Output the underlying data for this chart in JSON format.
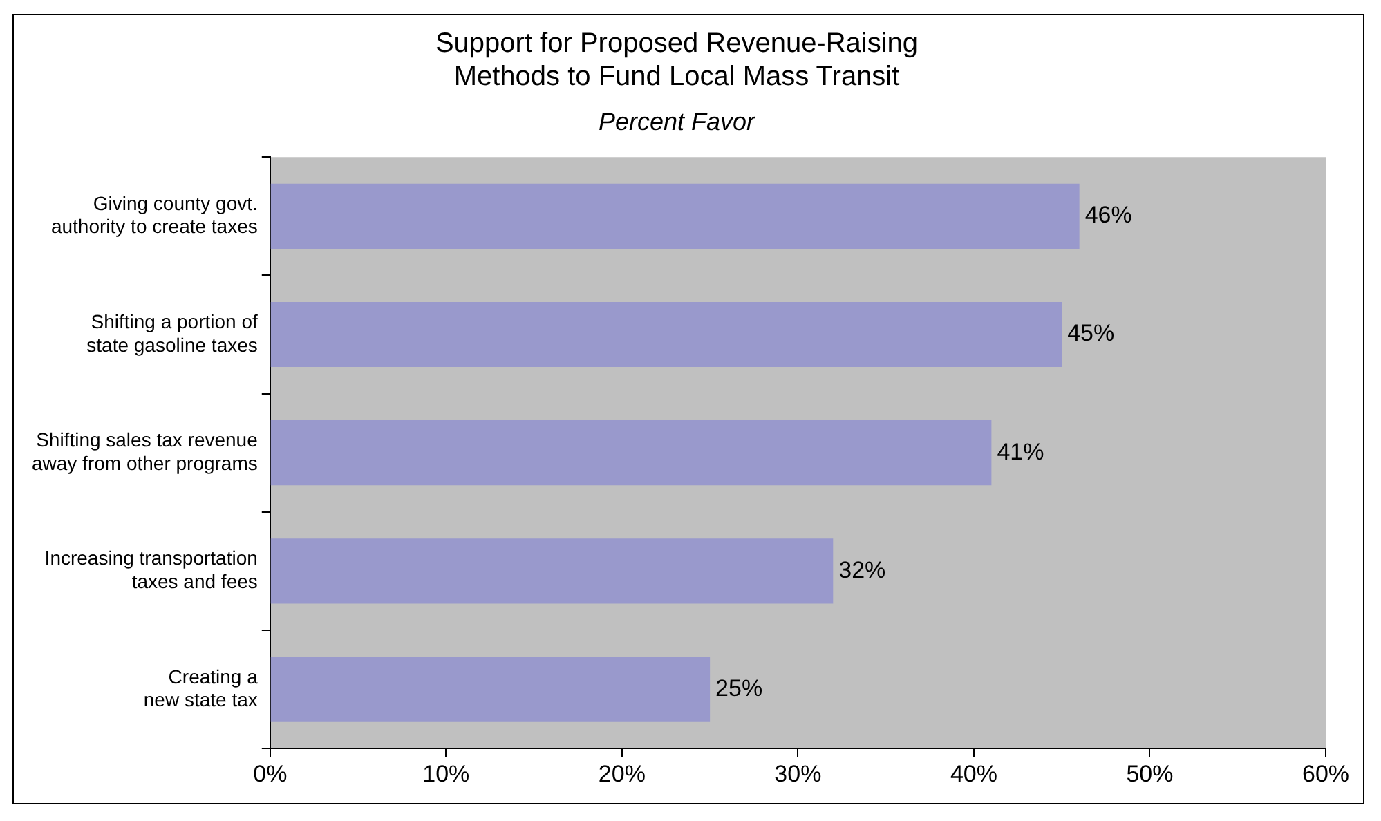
{
  "chart_data": {
    "type": "bar",
    "orientation": "horizontal",
    "title": "Support for Proposed Revenue-Raising Methods to Fund Local Mass Transit",
    "subtitle": "Percent Favor",
    "categories": [
      "Giving county govt. authority to create taxes",
      "Shifting a portion of state gasoline taxes",
      "Shifting sales tax revenue away from other programs",
      "Increasing transportation taxes and fees",
      "Creating a new state tax"
    ],
    "values": [
      46,
      45,
      41,
      32,
      25
    ],
    "color": "#9999cc",
    "value_labels": [
      "46%",
      "45%",
      "41%",
      "32%",
      "25%"
    ],
    "xlim": [
      0,
      60
    ],
    "xticks": [
      {
        "value": 0,
        "label": "0%"
      },
      {
        "value": 10,
        "label": "10%"
      },
      {
        "value": 20,
        "label": "20%"
      },
      {
        "value": 30,
        "label": "30%"
      },
      {
        "value": 40,
        "label": "40%"
      },
      {
        "value": 50,
        "label": "50%"
      },
      {
        "value": 60,
        "label": "60%"
      }
    ],
    "grid": false,
    "legend": false
  }
}
